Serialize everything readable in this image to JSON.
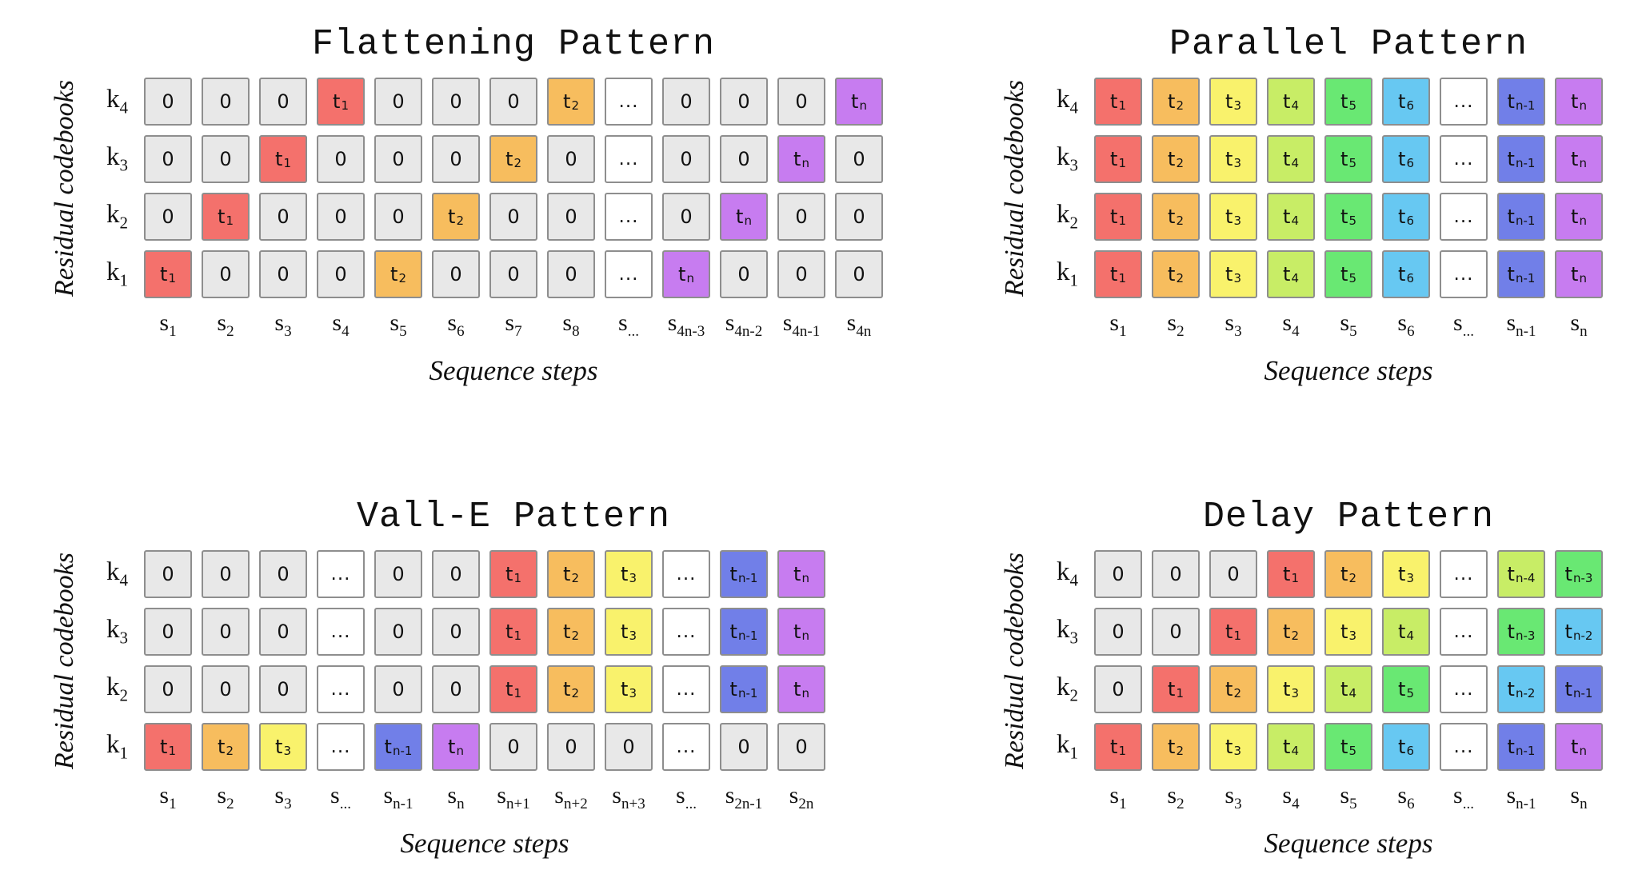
{
  "colors": {
    "gray": "#e8e8e8",
    "white": "#ffffff",
    "red": "#f4716c",
    "orange": "#f7bd5e",
    "yellow": "#f9f26c",
    "yellowgreen": "#c8ed66",
    "green": "#69e873",
    "cyan": "#67c8f2",
    "blue": "#717fe8",
    "purple": "#c77cf0"
  },
  "panels": [
    {
      "id": "flattening",
      "title": "Flattening Pattern",
      "y_label": "Residual codebooks",
      "x_label": "Sequence steps",
      "rows": [
        "k|4",
        "k|3",
        "k|2",
        "k|1"
      ],
      "cols": [
        "s|1",
        "s|2",
        "s|3",
        "s|4",
        "s|5",
        "s|6",
        "s|7",
        "s|8",
        "s|...",
        "s|4n-3",
        "s|4n-2",
        "s|4n-1",
        "s|4n"
      ],
      "cells": [
        [
          "0||gray",
          "0||gray",
          "0||gray",
          "t|1|red",
          "0||gray",
          "0||gray",
          "0||gray",
          "t|2|orange",
          "...||white",
          "0||gray",
          "0||gray",
          "0||gray",
          "t|n|purple"
        ],
        [
          "0||gray",
          "0||gray",
          "t|1|red",
          "0||gray",
          "0||gray",
          "0||gray",
          "t|2|orange",
          "0||gray",
          "...||white",
          "0||gray",
          "0||gray",
          "t|n|purple",
          "0||gray"
        ],
        [
          "0||gray",
          "t|1|red",
          "0||gray",
          "0||gray",
          "0||gray",
          "t|2|orange",
          "0||gray",
          "0||gray",
          "...||white",
          "0||gray",
          "t|n|purple",
          "0||gray",
          "0||gray"
        ],
        [
          "t|1|red",
          "0||gray",
          "0||gray",
          "0||gray",
          "t|2|orange",
          "0||gray",
          "0||gray",
          "0||gray",
          "...||white",
          "t|n|purple",
          "0||gray",
          "0||gray",
          "0||gray"
        ]
      ]
    },
    {
      "id": "parallel",
      "title": "Parallel Pattern",
      "y_label": "Residual codebooks",
      "x_label": "Sequence steps",
      "rows": [
        "k|4",
        "k|3",
        "k|2",
        "k|1"
      ],
      "cols": [
        "s|1",
        "s|2",
        "s|3",
        "s|4",
        "s|5",
        "s|6",
        "s|...",
        "s|n-1",
        "s|n"
      ],
      "cells": [
        [
          "t|1|red",
          "t|2|orange",
          "t|3|yellow",
          "t|4|yellowgreen",
          "t|5|green",
          "t|6|cyan",
          "...||white",
          "t|n-1|blue",
          "t|n|purple"
        ],
        [
          "t|1|red",
          "t|2|orange",
          "t|3|yellow",
          "t|4|yellowgreen",
          "t|5|green",
          "t|6|cyan",
          "...||white",
          "t|n-1|blue",
          "t|n|purple"
        ],
        [
          "t|1|red",
          "t|2|orange",
          "t|3|yellow",
          "t|4|yellowgreen",
          "t|5|green",
          "t|6|cyan",
          "...||white",
          "t|n-1|blue",
          "t|n|purple"
        ],
        [
          "t|1|red",
          "t|2|orange",
          "t|3|yellow",
          "t|4|yellowgreen",
          "t|5|green",
          "t|6|cyan",
          "...||white",
          "t|n-1|blue",
          "t|n|purple"
        ]
      ]
    },
    {
      "id": "vall-e",
      "title": "Vall-E Pattern",
      "y_label": "Residual codebooks",
      "x_label": "Sequence steps",
      "rows": [
        "k|4",
        "k|3",
        "k|2",
        "k|1"
      ],
      "cols": [
        "s|1",
        "s|2",
        "s|3",
        "s|...",
        "s|n-1",
        "s|n",
        "s|n+1",
        "s|n+2",
        "s|n+3",
        "s|...",
        "s|2n-1",
        "s|2n"
      ],
      "cells": [
        [
          "0||gray",
          "0||gray",
          "0||gray",
          "...||white",
          "0||gray",
          "0||gray",
          "t|1|red",
          "t|2|orange",
          "t|3|yellow",
          "...||white",
          "t|n-1|blue",
          "t|n|purple"
        ],
        [
          "0||gray",
          "0||gray",
          "0||gray",
          "...||white",
          "0||gray",
          "0||gray",
          "t|1|red",
          "t|2|orange",
          "t|3|yellow",
          "...||white",
          "t|n-1|blue",
          "t|n|purple"
        ],
        [
          "0||gray",
          "0||gray",
          "0||gray",
          "...||white",
          "0||gray",
          "0||gray",
          "t|1|red",
          "t|2|orange",
          "t|3|yellow",
          "...||white",
          "t|n-1|blue",
          "t|n|purple"
        ],
        [
          "t|1|red",
          "t|2|orange",
          "t|3|yellow",
          "...||white",
          "t|n-1|blue",
          "t|n|purple",
          "0||gray",
          "0||gray",
          "0||gray",
          "...||white",
          "0||gray",
          "0||gray"
        ]
      ]
    },
    {
      "id": "delay",
      "title": "Delay Pattern",
      "y_label": "Residual codebooks",
      "x_label": "Sequence steps",
      "rows": [
        "k|4",
        "k|3",
        "k|2",
        "k|1"
      ],
      "cols": [
        "s|1",
        "s|2",
        "s|3",
        "s|4",
        "s|5",
        "s|6",
        "s|...",
        "s|n-1",
        "s|n"
      ],
      "cells": [
        [
          "0||gray",
          "0||gray",
          "0||gray",
          "t|1|red",
          "t|2|orange",
          "t|3|yellow",
          "...||white",
          "t|n-4|yellowgreen",
          "t|n-3|green"
        ],
        [
          "0||gray",
          "0||gray",
          "t|1|red",
          "t|2|orange",
          "t|3|yellow",
          "t|4|yellowgreen",
          "...||white",
          "t|n-3|green",
          "t|n-2|cyan"
        ],
        [
          "0||gray",
          "t|1|red",
          "t|2|orange",
          "t|3|yellow",
          "t|4|yellowgreen",
          "t|5|green",
          "...||white",
          "t|n-2|cyan",
          "t|n-1|blue"
        ],
        [
          "t|1|red",
          "t|2|orange",
          "t|3|yellow",
          "t|4|yellowgreen",
          "t|5|green",
          "t|6|cyan",
          "...||white",
          "t|n-1|blue",
          "t|n|purple"
        ]
      ]
    }
  ]
}
